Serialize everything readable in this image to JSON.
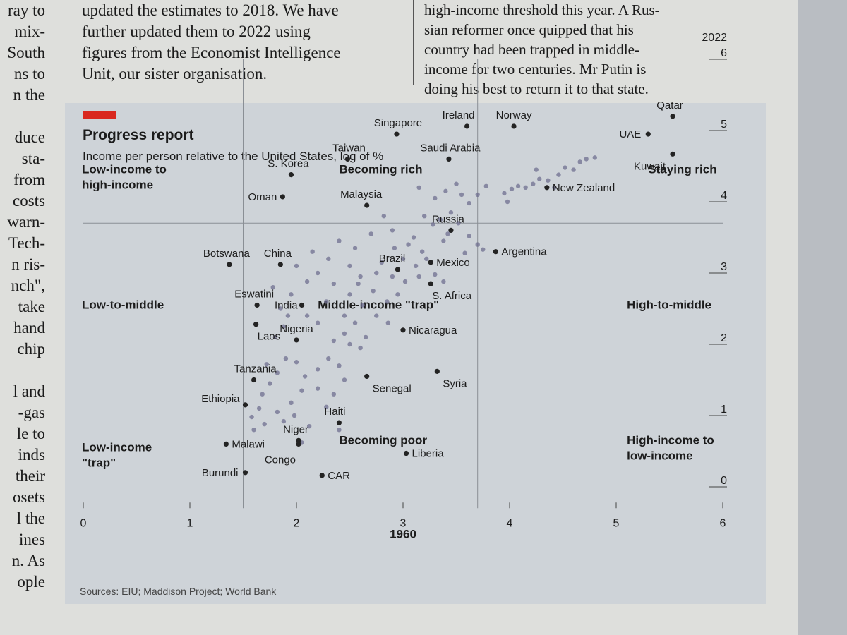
{
  "article": {
    "left_margin_fragments": [
      "ray to",
      "mix-",
      "South",
      "ns to",
      "n the",
      "",
      "duce",
      "sta-",
      "from",
      "costs",
      "warn-",
      "Tech-",
      "n ris-",
      "nch\",",
      "take",
      "hand",
      "chip",
      "",
      "l and",
      "-gas",
      "le to",
      "inds",
      "their",
      "osets",
      "l the",
      "ines",
      "n. As",
      "ople"
    ],
    "column_a": [
      "updated the estimates to 2018. We have",
      "further updated them to 2022 using",
      "figures from the Economist Intelligence",
      "Unit, our sister organisation."
    ],
    "column_b": [
      "high-income threshold this year. A Rus-",
      "sian reformer once quipped that his",
      "country had been trapped in middle-",
      "income for two centuries. Mr Putin is",
      "doing his best to return it to that state."
    ]
  },
  "chart_data": {
    "type": "scatter",
    "title": "Progress report",
    "subtitle": "Income per person relative to the United States, log of %",
    "xlabel": "1960",
    "ylabel": "2022",
    "xlim": [
      0,
      6
    ],
    "ylim": [
      0,
      6
    ],
    "x_ticks": [
      0,
      1,
      2,
      3,
      4,
      5,
      6
    ],
    "y_ticks": [
      0,
      1,
      2,
      3,
      4,
      5,
      6
    ],
    "thresholds": [
      1.5,
      3.7
    ],
    "quadrants": [
      {
        "label": "Low-income to\nhigh-income",
        "x": 0.0,
        "y": 4.4
      },
      {
        "label": "Becoming rich",
        "x": 2.4,
        "y": 4.4
      },
      {
        "label": "Staying rich",
        "x": 5.3,
        "y": 4.4
      },
      {
        "label": "Low-to-middle",
        "x": 0.0,
        "y": 2.5
      },
      {
        "label": "Middle-income \"trap\"",
        "x": 2.2,
        "y": 2.5
      },
      {
        "label": "High-to-middle",
        "x": 5.1,
        "y": 2.5
      },
      {
        "label": "Low-income\n\"trap\"",
        "x": 0.0,
        "y": 0.5
      },
      {
        "label": "Becoming poor",
        "x": 2.4,
        "y": 0.6
      },
      {
        "label": "High-income to\nlow-income",
        "x": 5.1,
        "y": 0.6
      }
    ],
    "labeled_points": [
      {
        "name": "Qatar",
        "x": 5.53,
        "y": 5.2,
        "lx": -4,
        "ly": -11
      },
      {
        "name": "UAE",
        "x": 5.3,
        "y": 4.95,
        "lx": -10,
        "ly": 5
      },
      {
        "name": "Kuwait",
        "x": 5.53,
        "y": 4.67,
        "lx": -10,
        "ly": 22
      },
      {
        "name": "Norway",
        "x": 4.04,
        "y": 5.06,
        "lx": 0,
        "ly": -11
      },
      {
        "name": "Ireland",
        "x": 3.6,
        "y": 5.06,
        "lx": -12,
        "ly": -11
      },
      {
        "name": "Singapore",
        "x": 2.94,
        "y": 4.95,
        "lx": 2,
        "ly": -11
      },
      {
        "name": "Saudi Arabia",
        "x": 3.43,
        "y": 4.6,
        "lx": 2,
        "ly": -11
      },
      {
        "name": "Taiwan",
        "x": 2.48,
        "y": 4.6,
        "lx": 2,
        "ly": -11
      },
      {
        "name": "S. Korea",
        "x": 1.95,
        "y": 4.38,
        "lx": -4,
        "ly": -11
      },
      {
        "name": "Oman",
        "x": 1.87,
        "y": 4.07,
        "lx": -8,
        "ly": 5
      },
      {
        "name": "Malaysia",
        "x": 2.66,
        "y": 3.95,
        "lx": -8,
        "ly": -11
      },
      {
        "name": "New Zealand",
        "x": 4.35,
        "y": 4.2,
        "lx": 8,
        "ly": 5
      },
      {
        "name": "Argentina",
        "x": 3.87,
        "y": 3.3,
        "lx": 8,
        "ly": 5
      },
      {
        "name": "Russia",
        "x": 3.45,
        "y": 3.6,
        "lx": -4,
        "ly": -11
      },
      {
        "name": "Mexico",
        "x": 3.26,
        "y": 3.15,
        "lx": 8,
        "ly": 5
      },
      {
        "name": "Brazil",
        "x": 2.95,
        "y": 3.05,
        "lx": -8,
        "ly": -11
      },
      {
        "name": "S. Africa",
        "x": 3.26,
        "y": 2.85,
        "lx": 2,
        "ly": 22
      },
      {
        "name": "China",
        "x": 1.85,
        "y": 3.12,
        "lx": -4,
        "ly": -11
      },
      {
        "name": "Botswana",
        "x": 1.37,
        "y": 3.12,
        "lx": -4,
        "ly": -11
      },
      {
        "name": "Eswatini",
        "x": 1.63,
        "y": 2.55,
        "lx": -4,
        "ly": -11
      },
      {
        "name": "India",
        "x": 2.05,
        "y": 2.55,
        "lx": -6,
        "ly": 5
      },
      {
        "name": "Nigeria",
        "x": 2.0,
        "y": 2.06,
        "lx": 0,
        "ly": -11
      },
      {
        "name": "Laos",
        "x": 1.62,
        "y": 2.28,
        "lx": 2,
        "ly": 22
      },
      {
        "name": "Tanzania",
        "x": 1.6,
        "y": 1.5,
        "lx": 2,
        "ly": -11
      },
      {
        "name": "Ethiopia",
        "x": 1.52,
        "y": 1.15,
        "lx": -8,
        "ly": -4
      },
      {
        "name": "Nicaragua",
        "x": 3.0,
        "y": 2.2,
        "lx": 8,
        "ly": 5
      },
      {
        "name": "Senegal",
        "x": 2.66,
        "y": 1.55,
        "lx": 8,
        "ly": 22
      },
      {
        "name": "Syria",
        "x": 3.32,
        "y": 1.62,
        "lx": 8,
        "ly": 22
      },
      {
        "name": "Haiti",
        "x": 2.4,
        "y": 0.9,
        "lx": -6,
        "ly": -11
      },
      {
        "name": "Niger",
        "x": 2.02,
        "y": 0.65,
        "lx": -4,
        "ly": -11
      },
      {
        "name": "Malawi",
        "x": 1.34,
        "y": 0.6,
        "lx": 8,
        "ly": 5
      },
      {
        "name": "Congo",
        "x": 2.02,
        "y": 0.6,
        "lx": -4,
        "ly": 27
      },
      {
        "name": "Liberia",
        "x": 3.03,
        "y": 0.47,
        "lx": 8,
        "ly": 5
      },
      {
        "name": "CAR",
        "x": 2.24,
        "y": 0.16,
        "lx": 8,
        "ly": 5
      },
      {
        "name": "Burundi",
        "x": 1.52,
        "y": 0.2,
        "lx": -10,
        "ly": 5
      }
    ],
    "unlabeled_points": [
      {
        "x": 4.28,
        "y": 4.32
      },
      {
        "x": 4.36,
        "y": 4.3
      },
      {
        "x": 4.46,
        "y": 4.38
      },
      {
        "x": 4.52,
        "y": 4.48
      },
      {
        "x": 4.6,
        "y": 4.45
      },
      {
        "x": 4.66,
        "y": 4.56
      },
      {
        "x": 4.72,
        "y": 4.6
      },
      {
        "x": 4.8,
        "y": 4.62
      },
      {
        "x": 4.22,
        "y": 4.25
      },
      {
        "x": 4.15,
        "y": 4.2
      },
      {
        "x": 4.08,
        "y": 4.22
      },
      {
        "x": 4.02,
        "y": 4.18
      },
      {
        "x": 3.95,
        "y": 4.12
      },
      {
        "x": 4.25,
        "y": 4.45
      },
      {
        "x": 4.42,
        "y": 4.2
      },
      {
        "x": 3.98,
        "y": 4.0
      },
      {
        "x": 3.4,
        "y": 4.15
      },
      {
        "x": 3.3,
        "y": 4.05
      },
      {
        "x": 3.5,
        "y": 4.25
      },
      {
        "x": 3.55,
        "y": 4.1
      },
      {
        "x": 3.62,
        "y": 3.98
      },
      {
        "x": 3.7,
        "y": 4.1
      },
      {
        "x": 3.78,
        "y": 4.22
      },
      {
        "x": 3.15,
        "y": 4.2
      },
      {
        "x": 3.2,
        "y": 3.8
      },
      {
        "x": 3.35,
        "y": 3.75
      },
      {
        "x": 3.45,
        "y": 3.85
      },
      {
        "x": 3.52,
        "y": 3.7
      },
      {
        "x": 3.42,
        "y": 3.55
      },
      {
        "x": 3.28,
        "y": 3.68
      },
      {
        "x": 3.38,
        "y": 3.45
      },
      {
        "x": 3.62,
        "y": 3.52
      },
      {
        "x": 3.7,
        "y": 3.4
      },
      {
        "x": 3.75,
        "y": 3.33
      },
      {
        "x": 3.1,
        "y": 3.5
      },
      {
        "x": 3.05,
        "y": 3.4
      },
      {
        "x": 3.18,
        "y": 3.3
      },
      {
        "x": 3.22,
        "y": 3.2
      },
      {
        "x": 3.12,
        "y": 3.1
      },
      {
        "x": 3.0,
        "y": 3.2
      },
      {
        "x": 2.92,
        "y": 3.35
      },
      {
        "x": 2.8,
        "y": 3.15
      },
      {
        "x": 2.75,
        "y": 3.0
      },
      {
        "x": 2.9,
        "y": 2.95
      },
      {
        "x": 3.02,
        "y": 2.88
      },
      {
        "x": 3.15,
        "y": 2.95
      },
      {
        "x": 3.3,
        "y": 2.98
      },
      {
        "x": 3.38,
        "y": 2.88
      },
      {
        "x": 2.95,
        "y": 2.7
      },
      {
        "x": 2.85,
        "y": 2.6
      },
      {
        "x": 2.72,
        "y": 2.75
      },
      {
        "x": 2.6,
        "y": 2.95
      },
      {
        "x": 2.5,
        "y": 3.1
      },
      {
        "x": 2.55,
        "y": 3.35
      },
      {
        "x": 2.4,
        "y": 3.45
      },
      {
        "x": 2.3,
        "y": 3.2
      },
      {
        "x": 2.2,
        "y": 3.0
      },
      {
        "x": 2.1,
        "y": 2.88
      },
      {
        "x": 2.0,
        "y": 3.1
      },
      {
        "x": 2.15,
        "y": 3.3
      },
      {
        "x": 2.35,
        "y": 2.85
      },
      {
        "x": 2.5,
        "y": 2.7
      },
      {
        "x": 2.62,
        "y": 2.55
      },
      {
        "x": 2.75,
        "y": 2.4
      },
      {
        "x": 2.86,
        "y": 2.3
      },
      {
        "x": 2.55,
        "y": 2.3
      },
      {
        "x": 2.45,
        "y": 2.15
      },
      {
        "x": 2.35,
        "y": 2.05
      },
      {
        "x": 2.5,
        "y": 2.0
      },
      {
        "x": 2.65,
        "y": 2.1
      },
      {
        "x": 2.2,
        "y": 2.3
      },
      {
        "x": 2.1,
        "y": 2.4
      },
      {
        "x": 1.92,
        "y": 2.4
      },
      {
        "x": 1.88,
        "y": 2.25
      },
      {
        "x": 1.85,
        "y": 2.5
      },
      {
        "x": 1.78,
        "y": 2.8
      },
      {
        "x": 1.95,
        "y": 2.7
      },
      {
        "x": 1.8,
        "y": 2.1
      },
      {
        "x": 1.9,
        "y": 1.8
      },
      {
        "x": 2.0,
        "y": 1.75
      },
      {
        "x": 1.82,
        "y": 1.6
      },
      {
        "x": 2.08,
        "y": 1.55
      },
      {
        "x": 2.2,
        "y": 1.65
      },
      {
        "x": 2.3,
        "y": 1.8
      },
      {
        "x": 2.4,
        "y": 1.7
      },
      {
        "x": 2.05,
        "y": 1.35
      },
      {
        "x": 2.2,
        "y": 1.38
      },
      {
        "x": 2.35,
        "y": 1.3
      },
      {
        "x": 2.28,
        "y": 1.12
      },
      {
        "x": 2.45,
        "y": 1.5
      },
      {
        "x": 1.75,
        "y": 1.45
      },
      {
        "x": 1.68,
        "y": 1.3
      },
      {
        "x": 1.65,
        "y": 1.1
      },
      {
        "x": 1.58,
        "y": 0.98
      },
      {
        "x": 1.7,
        "y": 0.88
      },
      {
        "x": 1.82,
        "y": 1.05
      },
      {
        "x": 1.88,
        "y": 0.92
      },
      {
        "x": 1.98,
        "y": 1.0
      },
      {
        "x": 1.95,
        "y": 1.18
      },
      {
        "x": 2.12,
        "y": 0.85
      },
      {
        "x": 1.6,
        "y": 0.8
      },
      {
        "x": 2.4,
        "y": 0.8
      },
      {
        "x": 2.05,
        "y": 0.62
      },
      {
        "x": 1.72,
        "y": 1.72
      },
      {
        "x": 2.6,
        "y": 1.95
      },
      {
        "x": 2.45,
        "y": 2.4
      },
      {
        "x": 2.58,
        "y": 2.85
      },
      {
        "x": 2.28,
        "y": 2.6
      },
      {
        "x": 2.9,
        "y": 3.6
      },
      {
        "x": 2.82,
        "y": 3.8
      },
      {
        "x": 2.7,
        "y": 3.55
      },
      {
        "x": 3.58,
        "y": 3.28
      }
    ]
  },
  "footer": {
    "source": "Sources: EIU; Maddison Project; World Bank"
  }
}
